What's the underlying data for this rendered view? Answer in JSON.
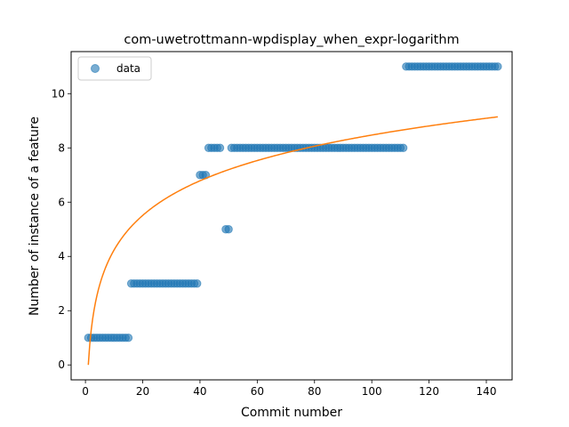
{
  "chart_data": {
    "type": "scatter",
    "title": "com-uwetrottmann-wpdisplay_when_expr-logarithm",
    "xlabel": "Commit number",
    "ylabel": "Number of instance of a feature",
    "xlim": [
      -5,
      149
    ],
    "ylim": [
      -0.55,
      11.55
    ],
    "xticks": [
      0,
      20,
      40,
      60,
      80,
      100,
      120,
      140
    ],
    "yticks": [
      0,
      2,
      4,
      6,
      8,
      10
    ],
    "grid": false,
    "legend": {
      "position": "top-left",
      "entries": [
        "data"
      ]
    },
    "colors": {
      "data": "#1f77b4",
      "fit": "#ff7f0e"
    },
    "series": [
      {
        "name": "data",
        "kind": "scatter",
        "segments": [
          {
            "x_start": 1,
            "x_end": 15,
            "y": 1
          },
          {
            "x_start": 16,
            "x_end": 39,
            "y": 3
          },
          {
            "x_start": 40,
            "x_end": 42,
            "y": 7
          },
          {
            "x_start": 43,
            "x_end": 47,
            "y": 8
          },
          {
            "x_start": 49,
            "x_end": 50,
            "y": 5
          },
          {
            "x_start": 51,
            "x_end": 111,
            "y": 8
          },
          {
            "x_start": 112,
            "x_end": 144,
            "y": 11
          }
        ]
      },
      {
        "kind": "line",
        "model": "logarithm",
        "a": 1.84,
        "b": 0,
        "x_range": [
          1,
          144
        ]
      }
    ]
  }
}
